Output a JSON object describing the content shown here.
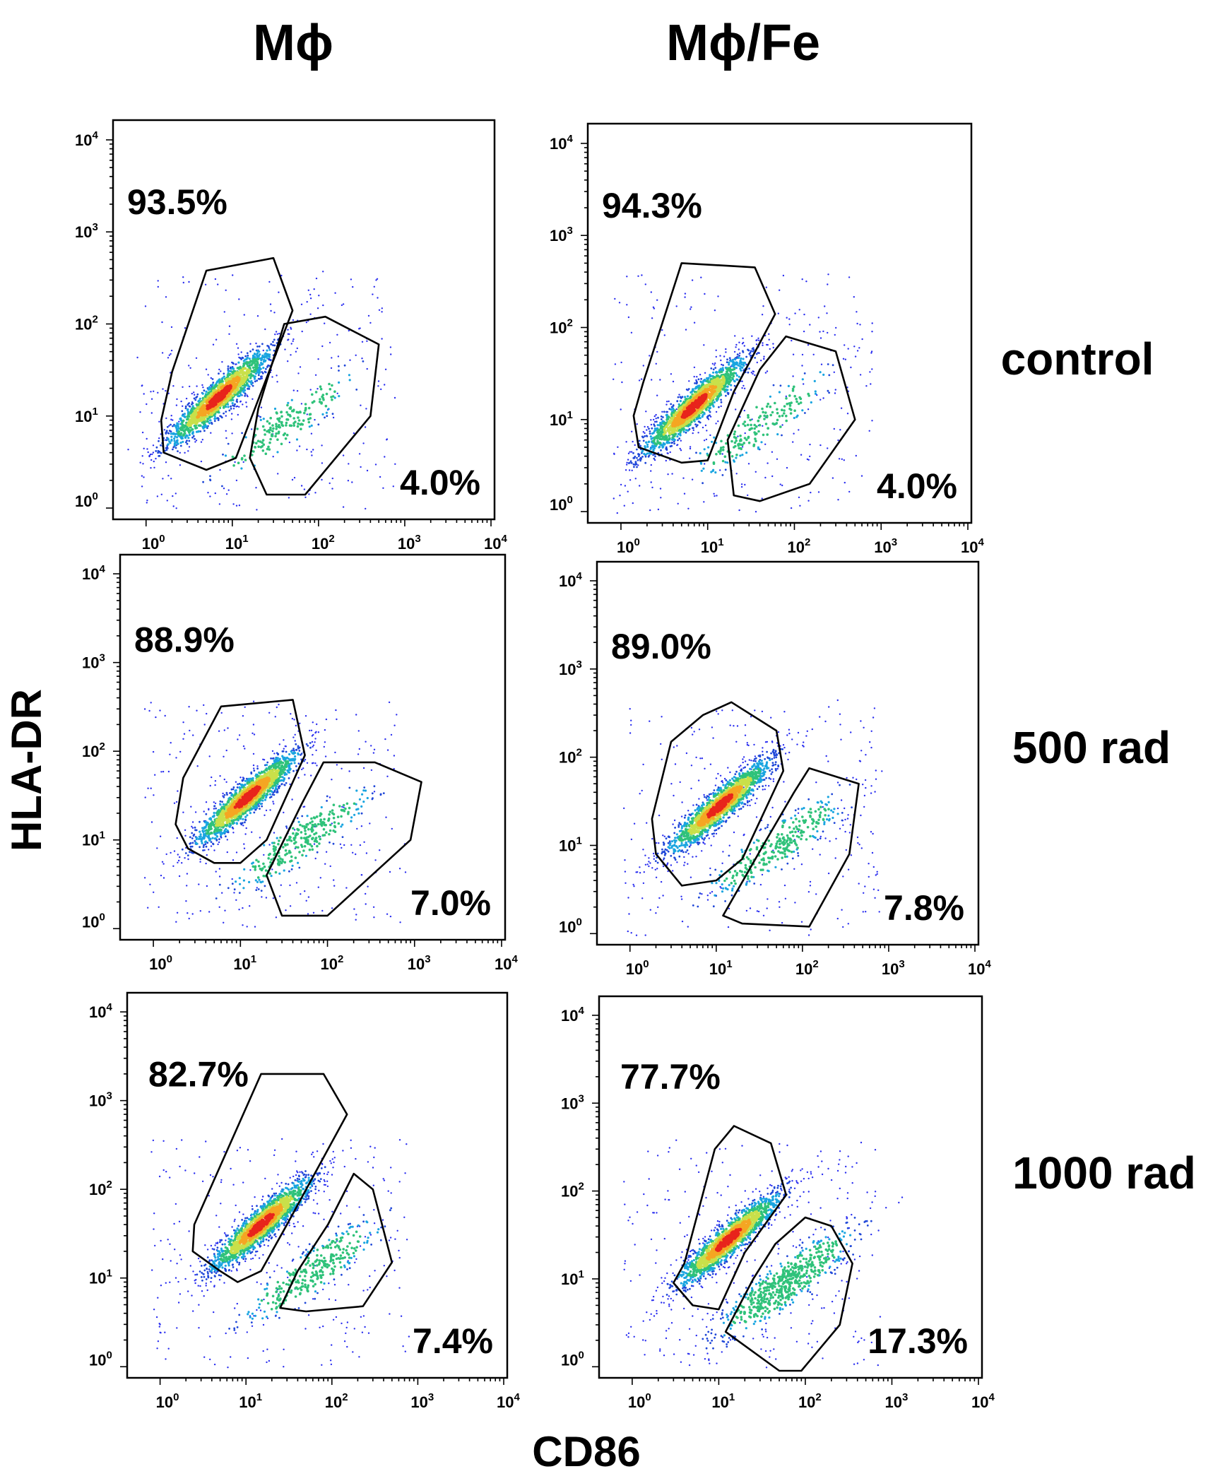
{
  "chart_data": {
    "type": "scatter",
    "title": "",
    "xlabel": "CD86",
    "ylabel": "HLA-DR",
    "xscale": "log",
    "yscale": "log",
    "xlim": [
      0.5,
      10000
    ],
    "ylim": [
      0.9,
      15000
    ],
    "tick_base": "10",
    "tick_exponents": [
      "0",
      "1",
      "2",
      "3",
      "4"
    ],
    "columns": [
      "Mϕ",
      "Mϕ/Fe"
    ],
    "rows": [
      "control",
      "500 rad",
      "1000 rad"
    ],
    "panels": [
      {
        "row": "control",
        "column": "Mϕ",
        "gate_upper": "93.5%",
        "gate_lower": "4.0%",
        "clusters": [
          {
            "cx": 7,
            "cy": 16,
            "sx": 0.3,
            "sy": 0.28,
            "n": 1500
          },
          {
            "cx": 40,
            "cy": 8,
            "sx": 0.4,
            "sy": 0.3,
            "n": 200
          }
        ],
        "gates": {
          "upper": [
            [
              2,
              30
            ],
            [
              5,
              380
            ],
            [
              30,
              520
            ],
            [
              50,
              140
            ],
            [
              11,
              3.5
            ],
            [
              5,
              2.6
            ],
            [
              1.6,
              4
            ],
            [
              1.5,
              9
            ]
          ],
          "lower": [
            [
              20,
              12
            ],
            [
              40,
              100
            ],
            [
              120,
              120
            ],
            [
              500,
              60
            ],
            [
              400,
              10
            ],
            [
              70,
              1.4
            ],
            [
              25,
              1.4
            ],
            [
              16,
              3.5
            ]
          ]
        }
      },
      {
        "row": "control",
        "column": "Mϕ/Fe",
        "gate_upper": "94.3%",
        "gate_lower": "4.0%",
        "clusters": [
          {
            "cx": 7,
            "cy": 14,
            "sx": 0.3,
            "sy": 0.28,
            "n": 1500
          },
          {
            "cx": 40,
            "cy": 9,
            "sx": 0.4,
            "sy": 0.3,
            "n": 200
          }
        ],
        "gates": {
          "upper": [
            [
              1.8,
              25
            ],
            [
              5,
              500
            ],
            [
              35,
              450
            ],
            [
              60,
              140
            ],
            [
              20,
              20
            ],
            [
              10,
              3.6
            ],
            [
              5,
              3.4
            ],
            [
              1.6,
              5
            ],
            [
              1.4,
              11
            ]
          ],
          "lower": [
            [
              40,
              35
            ],
            [
              80,
              80
            ],
            [
              300,
              55
            ],
            [
              500,
              10
            ],
            [
              150,
              2
            ],
            [
              40,
              1.3
            ],
            [
              20,
              1.5
            ],
            [
              17,
              6
            ]
          ]
        }
      },
      {
        "row": "500 rad",
        "column": "Mϕ",
        "gate_upper": "88.9%",
        "gate_lower": "7.0%",
        "clusters": [
          {
            "cx": 12,
            "cy": 30,
            "sx": 0.3,
            "sy": 0.28,
            "n": 1500
          },
          {
            "cx": 50,
            "cy": 10,
            "sx": 0.4,
            "sy": 0.3,
            "n": 300
          }
        ],
        "gates": {
          "upper": [
            [
              2.2,
              50
            ],
            [
              6,
              320
            ],
            [
              40,
              380
            ],
            [
              55,
              90
            ],
            [
              20,
              10
            ],
            [
              10,
              5.5
            ],
            [
              5,
              5.5
            ],
            [
              2.5,
              8
            ],
            [
              1.8,
              15
            ]
          ],
          "lower": [
            [
              50,
              25
            ],
            [
              90,
              75
            ],
            [
              350,
              75
            ],
            [
              1200,
              45
            ],
            [
              900,
              10
            ],
            [
              100,
              1.4
            ],
            [
              30,
              1.4
            ],
            [
              20,
              4
            ]
          ]
        }
      },
      {
        "row": "500 rad",
        "column": "Mϕ/Fe",
        "gate_upper": "89.0%",
        "gate_lower": "7.8%",
        "clusters": [
          {
            "cx": 11,
            "cy": 28,
            "sx": 0.3,
            "sy": 0.28,
            "n": 1500
          },
          {
            "cx": 50,
            "cy": 10,
            "sx": 0.4,
            "sy": 0.3,
            "n": 330
          }
        ],
        "gates": {
          "upper": [
            [
              1.8,
              20
            ],
            [
              3,
              150
            ],
            [
              7,
              300
            ],
            [
              15,
              420
            ],
            [
              50,
              200
            ],
            [
              60,
              70
            ],
            [
              20,
              7
            ],
            [
              10,
              4
            ],
            [
              4,
              3.5
            ],
            [
              2,
              8
            ]
          ],
          "lower": [
            [
              80,
              40
            ],
            [
              120,
              75
            ],
            [
              450,
              50
            ],
            [
              350,
              8
            ],
            [
              120,
              1.2
            ],
            [
              20,
              1.3
            ],
            [
              12,
              1.6
            ],
            [
              35,
              10
            ]
          ]
        }
      },
      {
        "row": "1000 rad",
        "column": "Mϕ",
        "gate_upper": "82.7%",
        "gate_lower": "7.4%",
        "clusters": [
          {
            "cx": 15,
            "cy": 40,
            "sx": 0.3,
            "sy": 0.28,
            "n": 1500
          },
          {
            "cx": 60,
            "cy": 12,
            "sx": 0.4,
            "sy": 0.3,
            "n": 320
          }
        ],
        "gates": {
          "upper": [
            [
              2.5,
              40
            ],
            [
              15,
              2000
            ],
            [
              80,
              2000
            ],
            [
              150,
              700
            ],
            [
              30,
              40
            ],
            [
              15,
              12
            ],
            [
              8,
              9
            ],
            [
              5,
              12
            ],
            [
              2.4,
              20
            ]
          ],
          "lower": [
            [
              90,
              40
            ],
            [
              180,
              150
            ],
            [
              300,
              100
            ],
            [
              500,
              15
            ],
            [
              230,
              4.8
            ],
            [
              50,
              4.2
            ],
            [
              25,
              4.6
            ],
            [
              40,
              12
            ]
          ]
        }
      },
      {
        "row": "1000 rad",
        "column": "Mϕ/Fe",
        "gate_upper": "77.7%",
        "gate_lower": "17.3%",
        "clusters": [
          {
            "cx": 13,
            "cy": 28,
            "sx": 0.3,
            "sy": 0.28,
            "n": 1500
          },
          {
            "cx": 60,
            "cy": 9,
            "sx": 0.4,
            "sy": 0.32,
            "n": 650
          }
        ],
        "gates": {
          "upper": [
            [
              4,
              15
            ],
            [
              9,
              300
            ],
            [
              15,
              550
            ],
            [
              40,
              350
            ],
            [
              60,
              90
            ],
            [
              20,
              20
            ],
            [
              10,
              4.5
            ],
            [
              5,
              5
            ],
            [
              3,
              9
            ]
          ],
          "lower": [
            [
              25,
              10
            ],
            [
              45,
              25
            ],
            [
              100,
              50
            ],
            [
              200,
              40
            ],
            [
              350,
              15
            ],
            [
              250,
              3
            ],
            [
              90,
              0.9
            ],
            [
              50,
              0.9
            ],
            [
              12,
              2.5
            ]
          ]
        }
      }
    ]
  }
}
